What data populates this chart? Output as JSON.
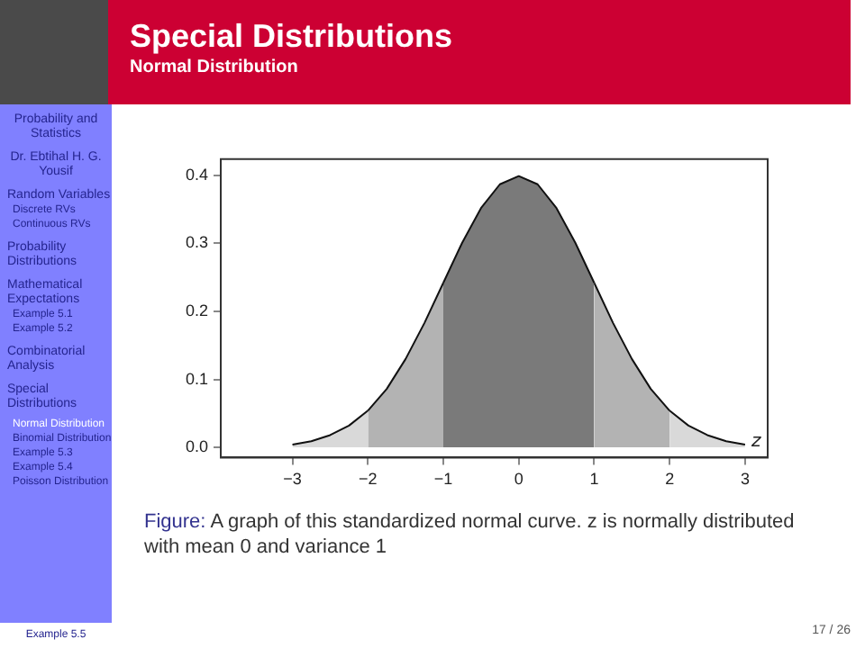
{
  "chart_data": {
    "type": "area",
    "title": "Special Distributions",
    "subtitle": "Normal Distribution",
    "xlabel": "z",
    "annotations": [
      "Probability and Statistics",
      "Dr. Ebtihal H. G. Yousif",
      "Random Variables",
      "Discrete RVs",
      "Continuous RVs",
      "Probability Distributions",
      "Mathematical Expectations",
      "Example 5.1",
      "Example 5.2",
      "Combinatorial Analysis",
      "Special Distributions",
      "Normal Distribution",
      "Binomial Distribution",
      "Example 5.3",
      "Example 5.4",
      "Poisson Distribution",
      "Example 5.5",
      "Figure:",
      "A graph of this standardized normal curve. z is normally distributed with mean 0 and variance 1",
      "17 / 26"
    ],
    "series": [
      {
        "color": "#d9d9d9",
        "x": [
          -3,
          -2.75,
          -2.5,
          -2.25,
          -2
        ],
        "values": [
          0.004,
          0.009,
          0.018,
          0.032,
          0.054
        ]
      },
      {
        "color": "#b3b3b3",
        "x": [
          -2,
          -1.75,
          -1.5,
          -1.25,
          -1
        ],
        "values": [
          0.054,
          0.086,
          0.13,
          0.183,
          0.242
        ]
      },
      {
        "color": "#7a7a7a",
        "x": [
          -1,
          -0.75,
          -0.5,
          -0.25,
          0,
          0.25,
          0.5,
          0.75,
          1
        ],
        "values": [
          0.242,
          0.301,
          0.352,
          0.387,
          0.399,
          0.387,
          0.352,
          0.301,
          0.242
        ]
      },
      {
        "color": "#b3b3b3",
        "x": [
          1,
          1.25,
          1.5,
          1.75,
          2
        ],
        "values": [
          0.242,
          0.183,
          0.13,
          0.086,
          0.054
        ]
      },
      {
        "color": "#d9d9d9",
        "x": [
          2,
          2.25,
          2.5,
          2.75,
          3
        ],
        "values": [
          0.054,
          0.032,
          0.018,
          0.009,
          0.004
        ]
      }
    ],
    "xlim": [
      -3.95,
      3.3
    ],
    "ylim": [
      -0.015,
      0.424
    ],
    "xticks": [
      {
        "value": -3,
        "label": "−3"
      },
      {
        "value": -2,
        "label": "−2"
      },
      {
        "value": -1,
        "label": "−1"
      },
      0,
      1,
      2,
      3
    ],
    "yticks": [
      {
        "value": 0,
        "label": "0.0"
      },
      0.1,
      0.2,
      0.3,
      0.4
    ],
    "grid": false
  }
}
